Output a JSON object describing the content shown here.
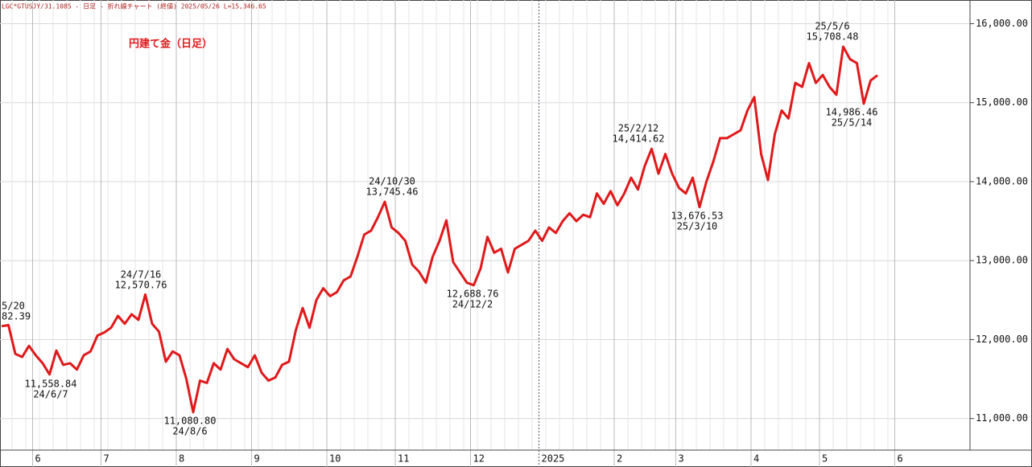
{
  "chart_data": {
    "type": "line",
    "header": "LGC*GTUSJY/31.1085 - 日足 - 折れ線チャート (終値)  2025/05/26 L=15,346.65",
    "title": "円建て金（日足）",
    "categories": [
      null,
      null,
      null,
      null,
      null,
      "6",
      null,
      null,
      null,
      null,
      null,
      null,
      null,
      null,
      null,
      "7",
      null,
      null,
      null,
      null,
      null,
      null,
      null,
      null,
      null,
      null,
      "8",
      null,
      null,
      null,
      null,
      null,
      null,
      null,
      null,
      null,
      null,
      "9",
      null,
      null,
      null,
      null,
      null,
      null,
      null,
      null,
      null,
      null,
      "10",
      null,
      null,
      null,
      null,
      null,
      null,
      null,
      null,
      null,
      "11",
      null,
      null,
      null,
      null,
      null,
      null,
      null,
      null,
      null,
      null,
      "12",
      null,
      null,
      null,
      null,
      null,
      null,
      null,
      null,
      null,
      "2025",
      null,
      null,
      null,
      null,
      null,
      null,
      null,
      null,
      null,
      null,
      "2",
      null,
      null,
      null,
      null,
      null,
      null,
      null,
      null,
      "3",
      null,
      null,
      null,
      null,
      null,
      null,
      null,
      null,
      null,
      null,
      "4",
      null,
      null,
      null,
      null,
      null,
      null,
      null,
      null,
      null,
      "5",
      null,
      null,
      null,
      null,
      null,
      null,
      null,
      null,
      null,
      null,
      "6"
    ],
    "series": [
      {
        "name": "円建て金",
        "color": "#e0191b",
        "values": [
          12170,
          12182.39,
          11820,
          11780,
          11920,
          11800,
          11700,
          11558.84,
          11860,
          11680,
          11700,
          11620,
          11800,
          11850,
          12050,
          12090,
          12150,
          12300,
          12200,
          12320,
          12250,
          12570.76,
          12200,
          12100,
          11720,
          11850,
          11800,
          11500,
          11080.8,
          11480,
          11450,
          11700,
          11620,
          11880,
          11750,
          11700,
          11650,
          11800,
          11580,
          11480,
          11520,
          11680,
          11720,
          12120,
          12400,
          12150,
          12500,
          12650,
          12550,
          12600,
          12750,
          12800,
          13050,
          13330,
          13380,
          13550,
          13745.46,
          13420,
          13350,
          13250,
          12950,
          12860,
          12720,
          13050,
          13250,
          13510,
          12980,
          12850,
          12720,
          12688.76,
          12900,
          13300,
          13100,
          13150,
          12850,
          13150,
          13200,
          13250,
          13380,
          13250,
          13420,
          13350,
          13500,
          13600,
          13500,
          13580,
          13550,
          13850,
          13720,
          13880,
          13700,
          13850,
          14050,
          13900,
          14200,
          14414.62,
          14100,
          14350,
          14100,
          13920,
          13850,
          14050,
          13676.53,
          14000,
          14250,
          14550,
          14550,
          14600,
          14650,
          14900,
          15070,
          14350,
          14020,
          14600,
          14900,
          14800,
          15250,
          15200,
          15500,
          15250,
          15350,
          15200,
          15100,
          15708.48,
          15550,
          15500,
          14986.46,
          15280,
          15346.65,
          null,
          null,
          null
        ]
      }
    ],
    "annotations": [
      [
        "5/20",
        "82.39"
      ],
      [
        "11,558.84",
        "24/6/7"
      ],
      [
        "24/7/16",
        "12,570.76"
      ],
      [
        "11,080.80",
        "24/8/6"
      ],
      [
        "24/10/30",
        "13,745.46"
      ],
      [
        "12,688.76",
        "24/12/2"
      ],
      [
        "25/2/12",
        "14,414.62"
      ],
      [
        "13,676.53",
        "25/3/10"
      ],
      [
        "25/5/6",
        "15,708.48"
      ],
      [
        "14,986.46",
        "25/5/14"
      ]
    ],
    "ylim": [
      10600,
      16300
    ],
    "yticks": [
      {
        "value": 11000,
        "label": "11,000.00"
      },
      {
        "value": 12000,
        "label": "12,000.00"
      },
      {
        "value": 13000,
        "label": "13,000.00"
      },
      {
        "value": 14000,
        "label": "14,000.00"
      },
      {
        "value": 15000,
        "label": "15,000.00"
      },
      {
        "value": 16000,
        "label": "16,000.00"
      }
    ],
    "grid": true
  }
}
